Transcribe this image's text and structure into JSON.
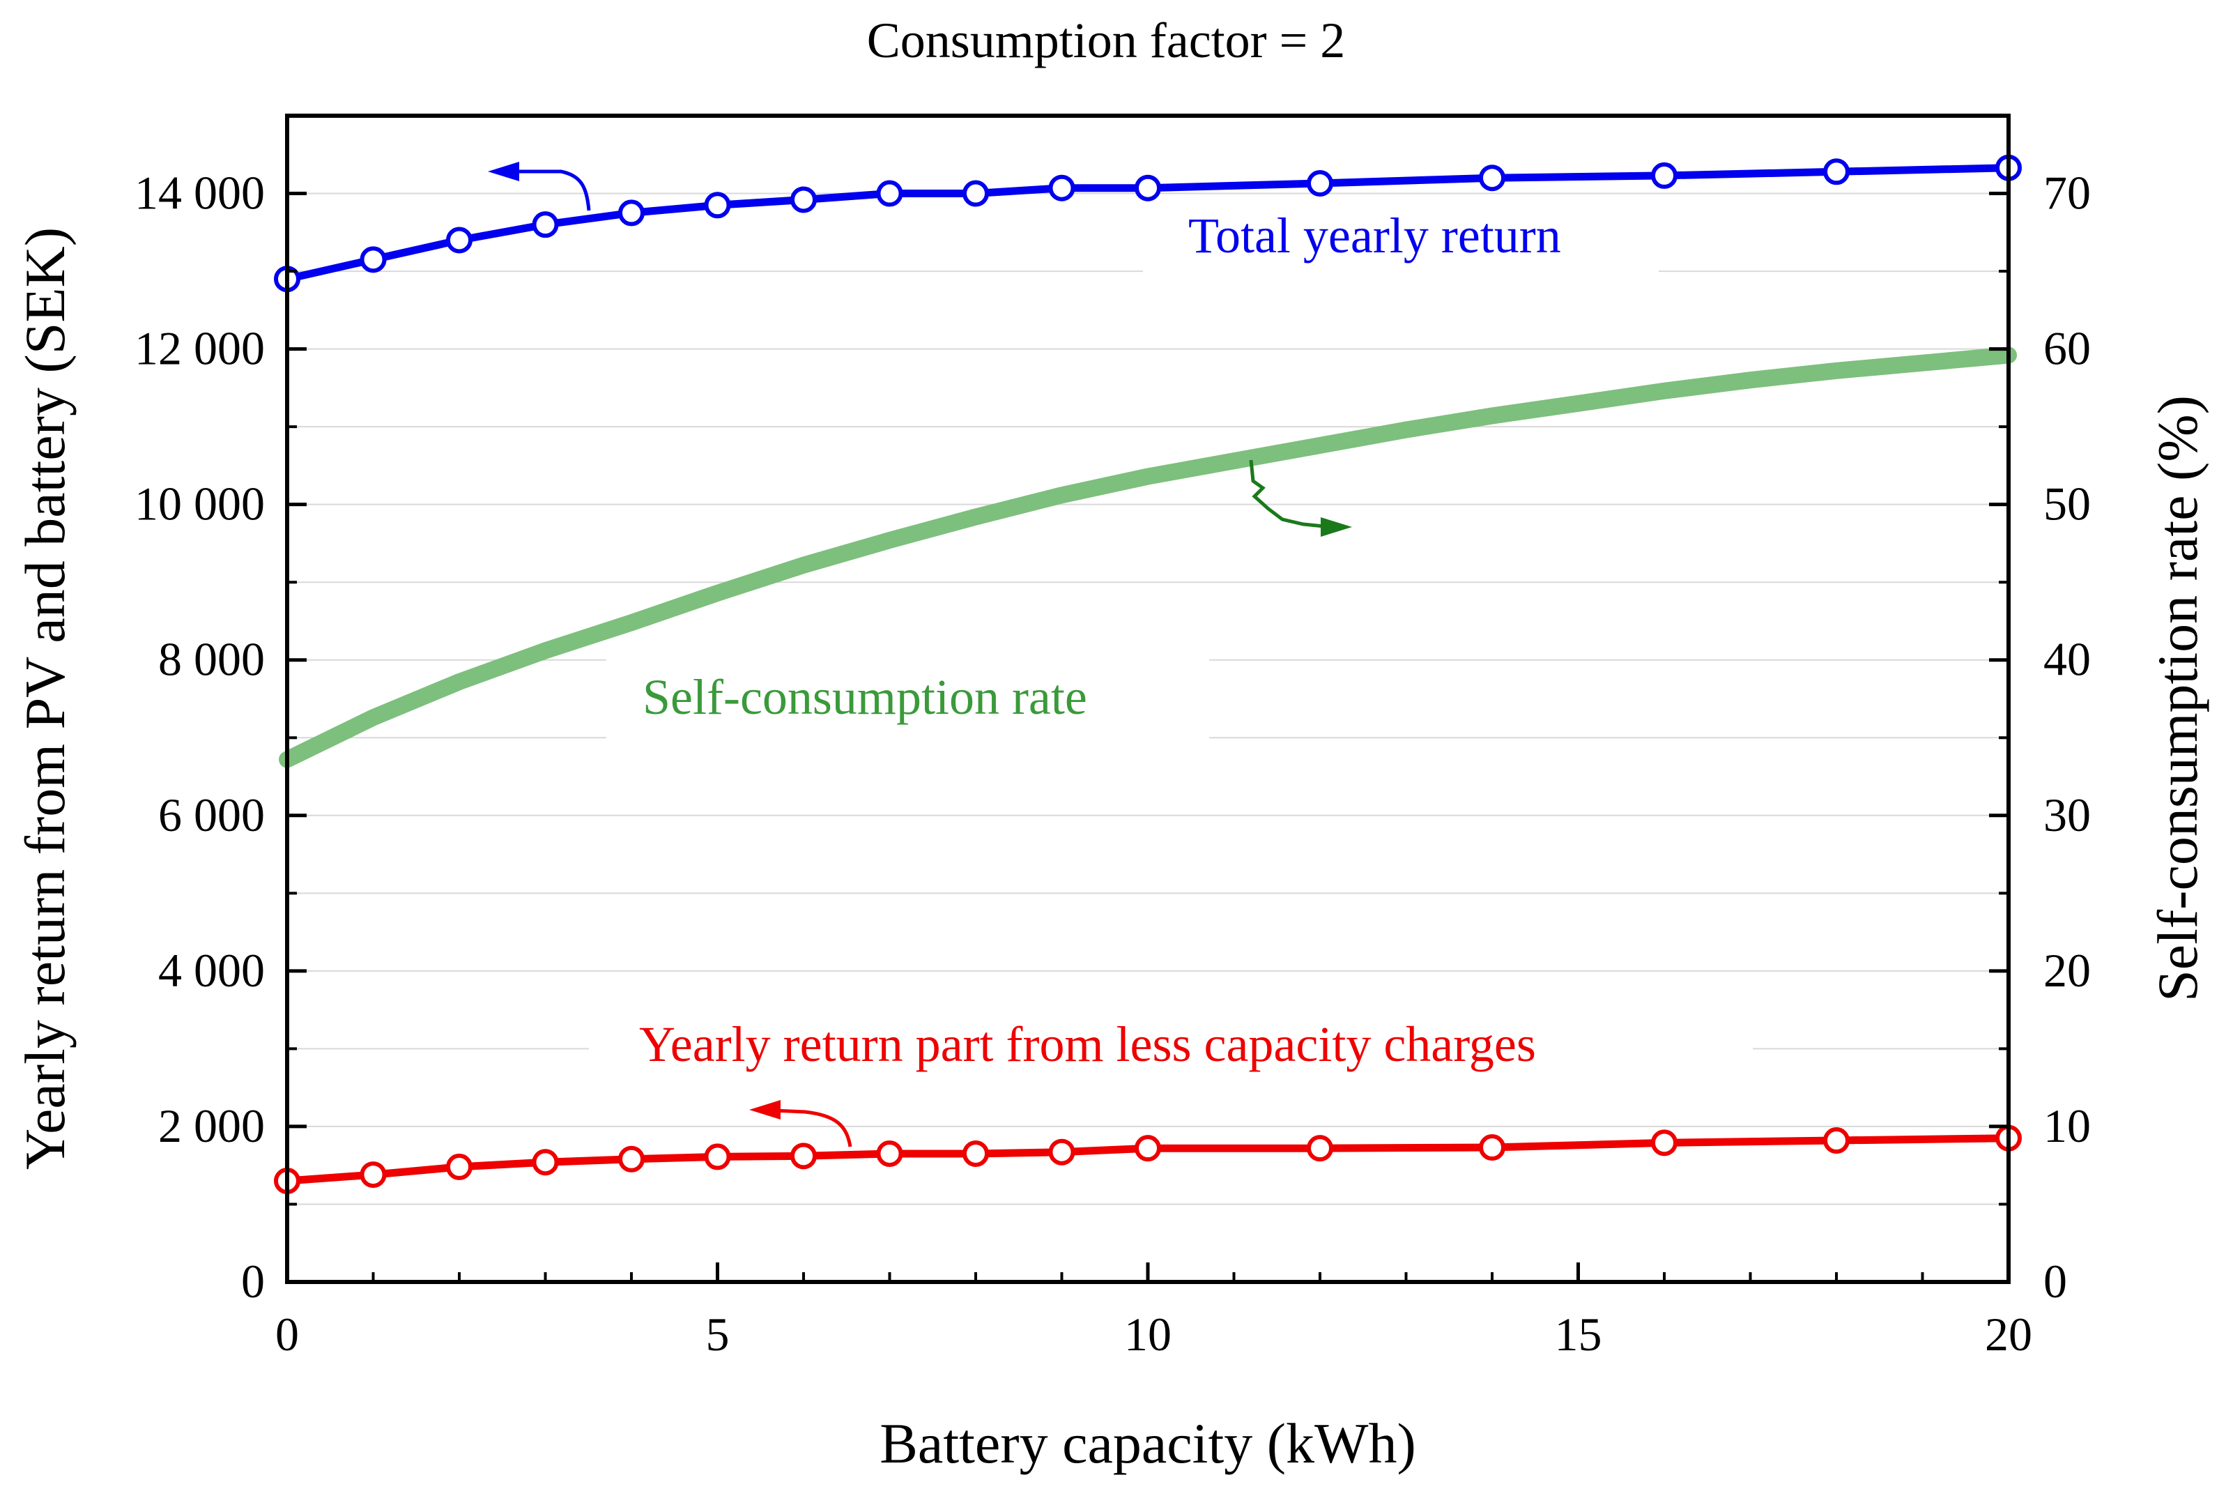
{
  "chart_data": {
    "type": "line",
    "title": "Consumption factor = 2",
    "xlabel": "Battery capacity (kWh)",
    "ylabel_left": "Yearly return from PV and battery (SEK)",
    "ylabel_right": "Self-consumption rate (%)",
    "xlim": [
      0,
      20
    ],
    "ylim_left": [
      0,
      15000
    ],
    "ylim_right": [
      0,
      75
    ],
    "x_ticks": [
      "0",
      "5",
      "10",
      "15",
      "20"
    ],
    "y_left_ticks": [
      "0",
      "2 000",
      "4 000",
      "6 000",
      "8 000",
      "10 000",
      "12 000",
      "14 000"
    ],
    "y_right_ticks": [
      "0",
      "10",
      "20",
      "30",
      "40",
      "50",
      "60",
      "70"
    ],
    "grid": true,
    "series": [
      {
        "name": "Total yearly return",
        "axis": "left",
        "color": "#0000ee",
        "markers": true,
        "x": [
          0,
          1,
          2,
          3,
          4,
          5,
          6,
          7,
          8,
          9,
          10,
          12,
          14,
          16,
          18,
          20
        ],
        "values": [
          12900,
          13150,
          13400,
          13600,
          13750,
          13850,
          13920,
          14000,
          14000,
          14070,
          14070,
          14130,
          14200,
          14230,
          14280,
          14330
        ]
      },
      {
        "name": "Self-consumption rate",
        "axis": "right",
        "color": "#7dbf7d",
        "markers": false,
        "x": [
          0,
          1,
          2,
          3,
          4,
          5,
          6,
          7,
          8,
          9,
          10,
          11,
          12,
          13,
          14,
          15,
          16,
          17,
          18,
          19,
          20
        ],
        "values": [
          33.6,
          36.3,
          38.6,
          40.6,
          42.4,
          44.3,
          46.1,
          47.7,
          49.2,
          50.6,
          51.8,
          52.8,
          53.8,
          54.8,
          55.7,
          56.5,
          57.3,
          58.0,
          58.6,
          59.1,
          59.6
        ]
      },
      {
        "name": "Yearly return part from less capacity charges",
        "axis": "left",
        "color": "#ee0000",
        "markers": true,
        "x": [
          0,
          1,
          2,
          3,
          4,
          5,
          6,
          7,
          8,
          9,
          10,
          12,
          14,
          16,
          18,
          20
        ],
        "values": [
          1300,
          1380,
          1480,
          1540,
          1580,
          1610,
          1620,
          1650,
          1650,
          1670,
          1720,
          1720,
          1730,
          1790,
          1820,
          1850
        ]
      }
    ],
    "annotations": [
      {
        "text": "Total yearly return",
        "color": "#0000ee"
      },
      {
        "text": "Self-consumption rate",
        "color": "#3a9a3a"
      },
      {
        "text": "Yearly return part from less capacity charges",
        "color": "#ee0000"
      }
    ]
  }
}
